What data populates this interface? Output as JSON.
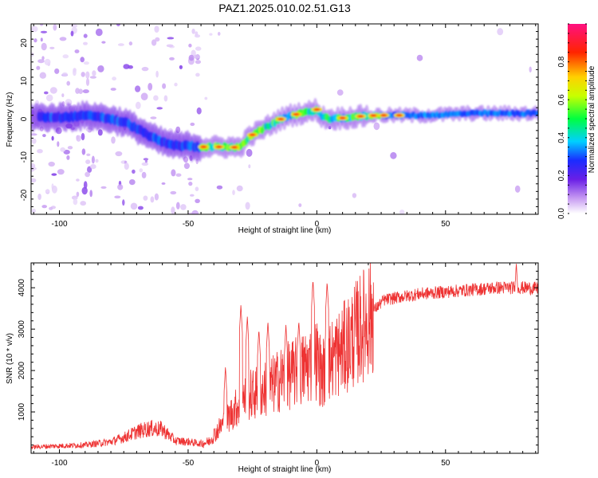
{
  "title": "PAZ1.2025.010.02.51.G13",
  "chart_data": [
    {
      "type": "heatmap",
      "xlabel": "Height of straight line (km)",
      "ylabel": "Frequency (Hz)",
      "xlim": [
        -111,
        86
      ],
      "ylim": [
        -25,
        25
      ],
      "xticks": [
        -100,
        -50,
        0,
        50
      ],
      "yticks": [
        -20,
        -10,
        0,
        10,
        20
      ],
      "colorbar": {
        "label": "Normalized spectral amplitude",
        "range": [
          0,
          1
        ],
        "ticks": [
          "0.0",
          "0.2",
          "0.4",
          "0.6",
          "0.8"
        ]
      },
      "ridge": {
        "x": [
          -104,
          -98,
          -92,
          -86,
          -80,
          -74,
          -70,
          -66,
          -62,
          -58,
          -54,
          -50,
          -46,
          -42,
          -38,
          -34,
          -30,
          -26,
          -22,
          -18,
          -14,
          -10,
          -6,
          -2,
          0,
          2,
          6,
          10,
          14,
          18,
          24,
          30,
          40,
          50,
          60,
          70,
          80,
          86
        ],
        "y": [
          0.5,
          0.5,
          0.8,
          0.8,
          0,
          -1,
          -2.5,
          -4,
          -5.5,
          -6.5,
          -7,
          -7,
          -7.3,
          -7.3,
          -7.3,
          -7.3,
          -7.5,
          -4.5,
          -3,
          -1.5,
          0,
          1,
          1.5,
          2,
          2.5,
          0.5,
          0,
          0.3,
          0.5,
          0.8,
          1,
          1,
          1,
          1.2,
          1.5,
          1.5,
          1.5,
          1.5
        ]
      },
      "max_amplitude_x": [
        -44,
        -38,
        -32,
        -25,
        -14,
        -8,
        0,
        10,
        17,
        22,
        26,
        32
      ]
    },
    {
      "type": "line",
      "xlabel": "Height of straight line (km)",
      "ylabel": "SNR (10 * v/v)",
      "xlim": [
        -111,
        86
      ],
      "ylim": [
        0,
        4600
      ],
      "xticks": [
        -100,
        -50,
        0,
        50
      ],
      "yticks": [
        1000,
        2000,
        3000,
        4000
      ],
      "color": "#ee3333",
      "envelope": {
        "x": [
          -111,
          -100,
          -90,
          -80,
          -75,
          -70,
          -65,
          -60,
          -55,
          -50,
          -45,
          -42,
          -38,
          -34,
          -30,
          -26,
          -22,
          -18,
          -14,
          -10,
          -6,
          -2,
          0,
          2,
          6,
          10,
          14,
          18,
          22,
          26,
          30,
          35,
          40,
          50,
          60,
          70,
          80,
          86
        ],
        "y": [
          150,
          180,
          200,
          280,
          380,
          520,
          600,
          580,
          300,
          280,
          230,
          280,
          600,
          900,
          1200,
          1400,
          1500,
          1600,
          1800,
          1900,
          2000,
          2200,
          2300,
          1900,
          2300,
          2500,
          2800,
          3100,
          3450,
          3700,
          3750,
          3800,
          3850,
          3900,
          3950,
          4000,
          4000,
          3980
        ]
      },
      "peaks": [
        {
          "x": -35.5,
          "y": 2100
        },
        {
          "x": -29.5,
          "y": 3600
        },
        {
          "x": -27,
          "y": 3300
        },
        {
          "x": -22.5,
          "y": 3000
        },
        {
          "x": -19,
          "y": 3200
        },
        {
          "x": -12,
          "y": 3100
        },
        {
          "x": -7,
          "y": 3200
        },
        {
          "x": -1.5,
          "y": 4200
        },
        {
          "x": 4,
          "y": 4150
        },
        {
          "x": 77.5,
          "y": 4600
        }
      ]
    }
  ]
}
